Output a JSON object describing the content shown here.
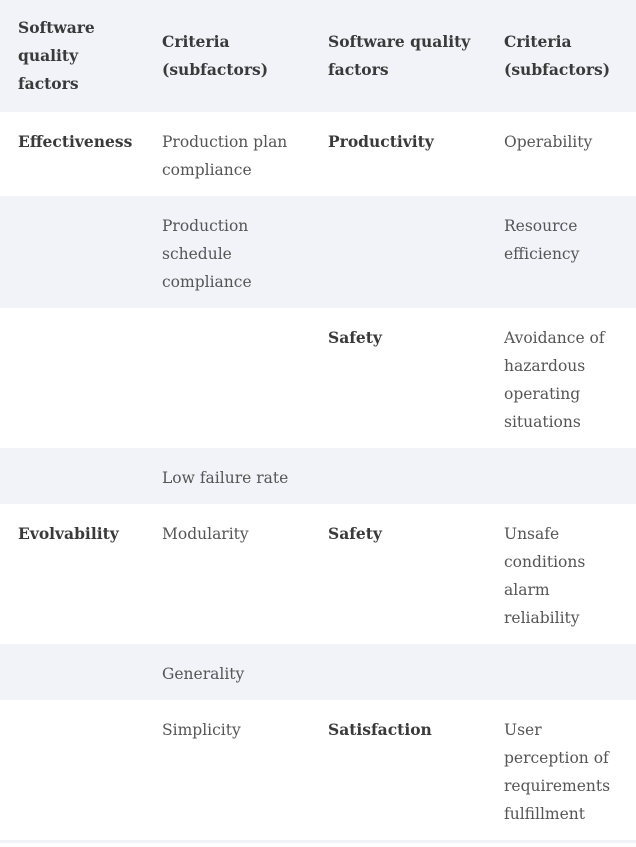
{
  "table": {
    "headers": [
      "Software quality factors",
      "Criteria (subfactors)",
      "Software quality factors",
      "Criteria (subfactors)"
    ],
    "rows": [
      [
        "Effectiveness",
        "Production plan compliance",
        "Productivity",
        "Operability"
      ],
      [
        "",
        "Production schedule compliance",
        "",
        "Resource efficiency"
      ],
      [
        "",
        "",
        "Safety",
        "Avoidance of hazardous operating situations"
      ],
      [
        "",
        "Low failure rate",
        "",
        ""
      ],
      [
        "Evolvability",
        "Modularity",
        "Safety",
        "Unsafe conditions alarm reliability"
      ],
      [
        "",
        "Generality",
        "",
        ""
      ],
      [
        "",
        "Simplicity",
        "Satisfaction",
        "User perception of requirements fulfillment"
      ]
    ]
  }
}
